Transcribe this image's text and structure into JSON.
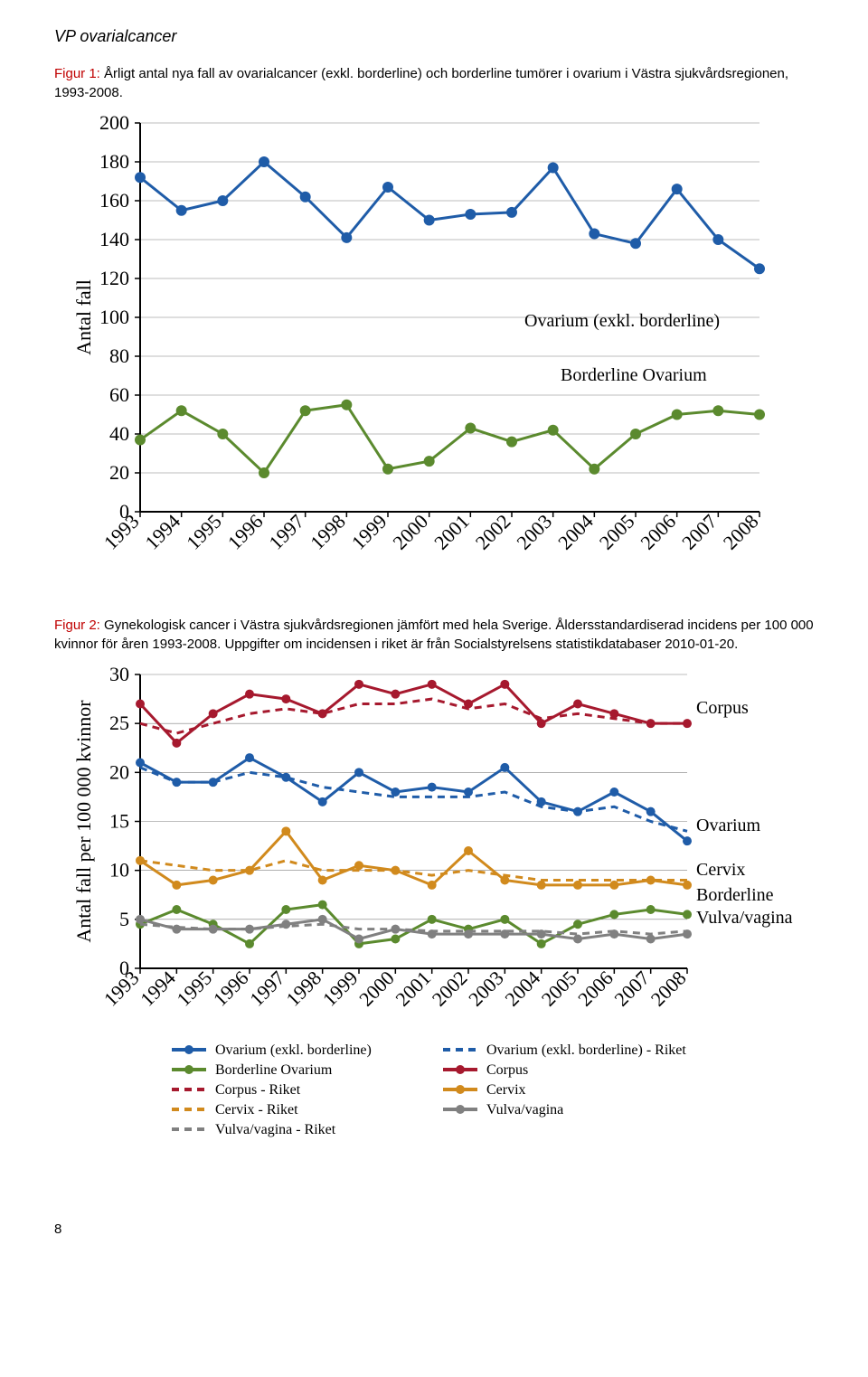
{
  "header": {
    "title": "VP ovarialcancer"
  },
  "figure1": {
    "caption_lead": "Figur 1:",
    "caption_rest": " Årligt antal nya fall av ovarialcancer (exkl. borderline) och borderline tumörer i ovarium i Västra sjukvårdsregionen, 1993-2008.",
    "chart": {
      "type": "line",
      "ylabel": "Antal fall",
      "xlim": [
        1993,
        2008
      ],
      "ylim": [
        0,
        200
      ],
      "ytick_step": 20,
      "background_color": "#ffffff",
      "grid_color": "#7f7f7f",
      "axis_color": "#000000",
      "tick_fontsize": 22,
      "label_fontsize": 26,
      "years": [
        1993,
        1994,
        1995,
        1996,
        1997,
        1998,
        1999,
        2000,
        2001,
        2002,
        2003,
        2004,
        2005,
        2006,
        2007,
        2008
      ],
      "series": [
        {
          "name": "Ovarium (exkl. borderline)",
          "color": "#1f5ca8",
          "line_width": 3,
          "marker": "circle",
          "marker_size": 6,
          "values": [
            172,
            155,
            160,
            180,
            162,
            141,
            167,
            150,
            153,
            154,
            177,
            143,
            138,
            166,
            140,
            125
          ]
        },
        {
          "name": "Borderline Ovarium",
          "color": "#5b8a2e",
          "line_width": 3,
          "marker": "circle",
          "marker_size": 6,
          "values": [
            37,
            52,
            40,
            20,
            52,
            55,
            22,
            26,
            43,
            36,
            42,
            22,
            40,
            50,
            52,
            50
          ]
        }
      ]
    }
  },
  "figure2": {
    "caption_lead": "Figur 2:",
    "caption_rest": " Gynekologisk cancer i Västra sjukvårdsregionen jämfört med hela Sverige. Åldersstandardiserad incidens per 100 000 kvinnor för åren 1993-2008. Uppgifter om incidensen i riket är från Socialstyrelsens statistikdatabaser 2010-01-20.",
    "chart": {
      "type": "line",
      "ylabel": "Antal fall per 100 000 kvinnor",
      "xlim": [
        1993,
        2008
      ],
      "ylim": [
        0,
        30
      ],
      "ytick_step": 5,
      "background_color": "#ffffff",
      "grid_color": "#7f7f7f",
      "axis_color": "#000000",
      "tick_fontsize": 22,
      "label_fontsize": 26,
      "years": [
        1993,
        1994,
        1995,
        1996,
        1997,
        1998,
        1999,
        2000,
        2001,
        2002,
        2003,
        2004,
        2005,
        2006,
        2007,
        2008
      ],
      "series": [
        {
          "name": "Ovarium (exkl. borderline)",
          "legend_label": "Ovarium (exkl. borderline)",
          "color": "#1f5ca8",
          "line_width": 3,
          "dash": "none",
          "marker": "circle",
          "marker_size": 5,
          "values": [
            21,
            19,
            19,
            21.5,
            19.5,
            17,
            20,
            18,
            18.5,
            18,
            20.5,
            17,
            16,
            18,
            16,
            13
          ]
        },
        {
          "name": "Ovarium (exkl. borderline) - Riket",
          "legend_label": "Ovarium (exkl. borderline) - Riket",
          "color": "#1f5ca8",
          "line_width": 3,
          "dash": "8,6",
          "marker": "none",
          "values": [
            20.5,
            19,
            19,
            20,
            19.5,
            18.5,
            18,
            17.5,
            17.5,
            17.5,
            18,
            16.5,
            16,
            16.5,
            15,
            14
          ]
        },
        {
          "name": "Borderline Ovarium",
          "legend_label": "Borderline Ovarium",
          "color": "#5b8a2e",
          "line_width": 3,
          "dash": "none",
          "marker": "circle",
          "marker_size": 5,
          "values": [
            4.5,
            6,
            4.5,
            2.5,
            6,
            6.5,
            2.5,
            3,
            5,
            4,
            5,
            2.5,
            4.5,
            5.5,
            6,
            5.5
          ]
        },
        {
          "name": "Corpus",
          "legend_label": "Corpus",
          "color": "#a6192e",
          "line_width": 3,
          "dash": "none",
          "marker": "circle",
          "marker_size": 5,
          "values": [
            27,
            23,
            26,
            28,
            27.5,
            26,
            29,
            28,
            29,
            27,
            29,
            25,
            27,
            26,
            25,
            25
          ]
        },
        {
          "name": "Corpus - Riket",
          "legend_label": "Corpus - Riket",
          "color": "#a6192e",
          "line_width": 3,
          "dash": "8,6",
          "marker": "none",
          "values": [
            25,
            24,
            25,
            26,
            26.5,
            26,
            27,
            27,
            27.5,
            26.5,
            27,
            25.5,
            26,
            25.5,
            25,
            25
          ]
        },
        {
          "name": "Cervix",
          "legend_label": "Cervix",
          "color": "#d18a1d",
          "line_width": 3,
          "dash": "none",
          "marker": "circle",
          "marker_size": 5,
          "values": [
            11,
            8.5,
            9,
            10,
            14,
            9,
            10.5,
            10,
            8.5,
            12,
            9,
            8.5,
            8.5,
            8.5,
            9,
            8.5
          ]
        },
        {
          "name": "Cervix - Riket",
          "legend_label": "Cervix - Riket",
          "color": "#d18a1d",
          "line_width": 3,
          "dash": "8,6",
          "marker": "none",
          "values": [
            11,
            10.5,
            10,
            10,
            11,
            10,
            10,
            10,
            9.5,
            10,
            9.5,
            9,
            9,
            9,
            9,
            9
          ]
        },
        {
          "name": "Vulva/vagina",
          "legend_label": "Vulva/vagina",
          "color": "#808080",
          "line_width": 3,
          "dash": "none",
          "marker": "circle",
          "marker_size": 5,
          "values": [
            5,
            4,
            4,
            4,
            4.5,
            5,
            3,
            4,
            3.5,
            3.5,
            3.5,
            3.5,
            3,
            3.5,
            3,
            3.5
          ]
        },
        {
          "name": "Vulva/vagina - Riket",
          "legend_label": "Vulva/vagina - Riket",
          "color": "#808080",
          "line_width": 3,
          "dash": "8,6",
          "marker": "none",
          "values": [
            4.5,
            4.2,
            4,
            4,
            4.3,
            4.5,
            4,
            4,
            3.8,
            3.8,
            3.8,
            3.8,
            3.5,
            3.8,
            3.5,
            3.8
          ]
        }
      ],
      "inline_labels": [
        {
          "text": "Corpus",
          "color": "#a6192e"
        },
        {
          "text": "Ovarium",
          "color": "#1f5ca8"
        },
        {
          "text": "Cervix",
          "color": "#d18a1d"
        },
        {
          "text": "Borderline",
          "color": "#5b8a2e"
        },
        {
          "text": "Vulva/vagina",
          "color": "#808080"
        }
      ],
      "legend_position": "bottom",
      "legend_columns": 2
    }
  },
  "page_number": "8"
}
